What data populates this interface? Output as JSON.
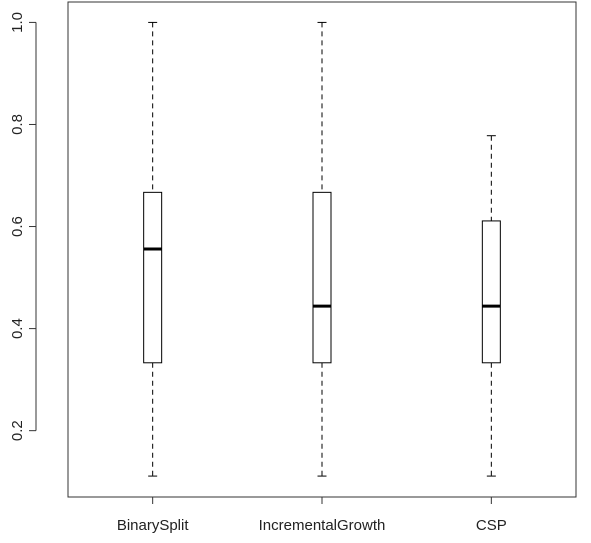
{
  "chart_data": {
    "type": "boxplot",
    "title": "",
    "xlabel": "",
    "ylabel": "",
    "categories": [
      "BinarySplit",
      "IncrementalGrowth",
      "CSP"
    ],
    "boxes": [
      {
        "min": 0.111,
        "q1": 0.333,
        "median": 0.556,
        "q3": 0.667,
        "max": 1.0
      },
      {
        "min": 0.111,
        "q1": 0.333,
        "median": 0.444,
        "q3": 0.667,
        "max": 1.0
      },
      {
        "min": 0.111,
        "q1": 0.333,
        "median": 0.444,
        "q3": 0.611,
        "max": 0.778
      }
    ],
    "ylim": [
      0.07,
      1.04
    ],
    "yticks": [
      0.2,
      0.4,
      0.6,
      0.8,
      1.0
    ],
    "ytick_labels": [
      "0.2",
      "0.4",
      "0.6",
      "0.8",
      "1.0"
    ],
    "grid": false,
    "legend": "none",
    "colors": {
      "box": "#ffffff",
      "line": "#000000",
      "axis": "#333333"
    }
  }
}
